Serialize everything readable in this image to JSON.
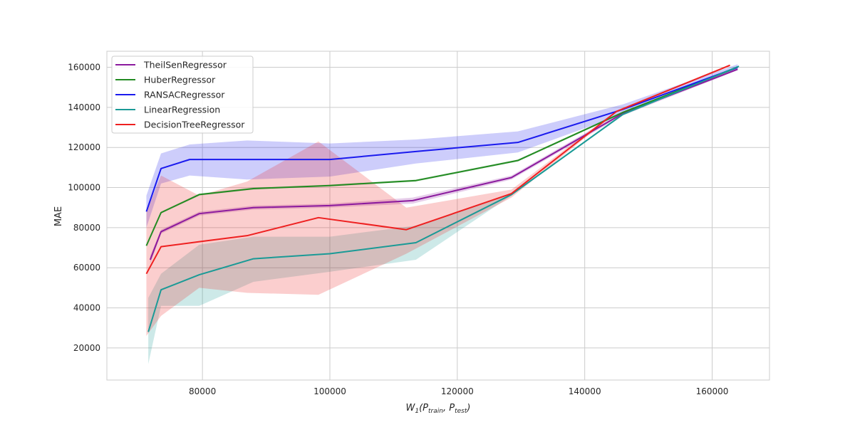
{
  "chart_data": {
    "type": "line",
    "xlabel": "W1(Ptrain, Ptest)",
    "xlabel_parts": {
      "main": "W",
      "sub1": "1",
      "open": "(P",
      "sub2": "train",
      "mid": ", P",
      "sub3": "test",
      "close": ")"
    },
    "ylabel": "MAE",
    "xlim": [
      65000,
      169000
    ],
    "ylim": [
      4000,
      168000
    ],
    "xticks": [
      80000,
      100000,
      120000,
      140000,
      160000
    ],
    "yticks": [
      20000,
      40000,
      60000,
      80000,
      100000,
      120000,
      140000,
      160000
    ],
    "grid": true,
    "legend_position": "top-left",
    "series": [
      {
        "name": "TheilSenRegressor",
        "color": "#8b1a9e",
        "x": [
          71800,
          73500,
          79500,
          88000,
          100000,
          113000,
          128500,
          146000,
          164000
        ],
        "y": [
          64000,
          78000,
          87000,
          90000,
          91000,
          93500,
          105000,
          137000,
          159000
        ],
        "lower": [
          62000,
          77000,
          86000,
          89000,
          90000,
          92000,
          104000,
          136000,
          158500
        ],
        "upper": [
          66000,
          79000,
          88000,
          91000,
          92000,
          95000,
          106000,
          138000,
          159500
        ]
      },
      {
        "name": "HuberRegressor",
        "color": "#228b22",
        "x": [
          71200,
          73500,
          79500,
          88000,
          100000,
          113500,
          129500,
          146000,
          164000
        ],
        "y": [
          71000,
          87500,
          96500,
          99500,
          101000,
          103500,
          113500,
          137500,
          160000
        ],
        "lower": [
          70500,
          87000,
          96000,
          99000,
          100500,
          103000,
          113000,
          137000,
          159500
        ],
        "upper": [
          71500,
          88000,
          97000,
          100000,
          101500,
          104000,
          114000,
          138000,
          160500
        ]
      },
      {
        "name": "RANSACRegressor",
        "color": "#1a1aee",
        "x": [
          71200,
          73500,
          78000,
          87000,
          100000,
          113500,
          129500,
          146000,
          164000
        ],
        "y": [
          88000,
          109500,
          114000,
          114000,
          114000,
          118000,
          122500,
          139000,
          160000
        ],
        "lower": [
          80000,
          102000,
          106000,
          104000,
          105500,
          112000,
          117500,
          136500,
          159000
        ],
        "upper": [
          96000,
          117000,
          121500,
          123500,
          122000,
          124000,
          128000,
          141500,
          161500
        ]
      },
      {
        "name": "LinearRegression",
        "color": "#1a9a96",
        "x": [
          71500,
          73500,
          79500,
          88000,
          100000,
          113500,
          128500,
          146000,
          164200
        ],
        "y": [
          28000,
          49000,
          56500,
          64500,
          67000,
          72500,
          96500,
          136500,
          160500
        ],
        "lower": [
          12000,
          41000,
          41000,
          53000,
          58000,
          64000,
          96000,
          136000,
          160000
        ],
        "upper": [
          45000,
          57000,
          71500,
          75500,
          75500,
          81000,
          97000,
          137000,
          161000
        ]
      },
      {
        "name": "DecisionTreeRegressor",
        "color": "#ee2020",
        "x": [
          71200,
          73500,
          79500,
          87000,
          98200,
          112000,
          128500,
          145000,
          162800
        ],
        "y": [
          57000,
          70500,
          73000,
          76000,
          85000,
          79000,
          97000,
          138000,
          161000
        ],
        "lower": [
          26000,
          36000,
          50000,
          47500,
          46500,
          67000,
          95000,
          137500,
          160500
        ],
        "upper": [
          88000,
          106000,
          96000,
          103000,
          123000,
          90000,
          99000,
          138500,
          161500
        ]
      }
    ]
  }
}
